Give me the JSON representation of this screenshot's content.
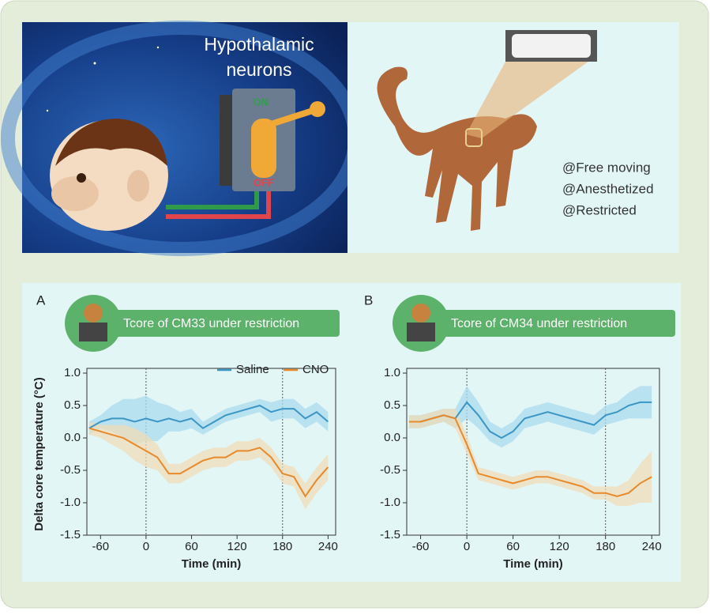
{
  "illustration": {
    "title_lines": [
      "Hypothalamic",
      "neurons"
    ],
    "switch_on": "ON",
    "switch_off": "OFF",
    "conditions": [
      "@Free moving",
      "@Anesthetized",
      "@Restricted"
    ]
  },
  "chart_data": [
    {
      "type": "line",
      "panel": "A",
      "title": "Tcore of CM33 under restriction",
      "xlabel": "Time (min)",
      "ylabel": "Delta core temperature (°C)",
      "x": [
        -75,
        -60,
        -45,
        -30,
        -15,
        0,
        15,
        30,
        45,
        60,
        75,
        90,
        105,
        120,
        135,
        150,
        165,
        180,
        195,
        210,
        225,
        240
      ],
      "series": [
        {
          "name": "Saline",
          "color": "#3b96c6",
          "band_color": "#a9dbee",
          "values": [
            0.15,
            0.25,
            0.3,
            0.3,
            0.25,
            0.3,
            0.25,
            0.3,
            0.25,
            0.3,
            0.15,
            0.25,
            0.35,
            0.4,
            0.45,
            0.5,
            0.4,
            0.45,
            0.45,
            0.3,
            0.4,
            0.25
          ],
          "errors": [
            0.1,
            0.1,
            0.2,
            0.3,
            0.35,
            0.35,
            0.3,
            0.2,
            0.15,
            0.15,
            0.1,
            0.1,
            0.1,
            0.1,
            0.1,
            0.1,
            0.15,
            0.15,
            0.15,
            0.15,
            0.15,
            0.15
          ]
        },
        {
          "name": "CNO",
          "color": "#e8892a",
          "band_color": "#f0dcb8",
          "values": [
            0.15,
            0.1,
            0.05,
            0.0,
            -0.1,
            -0.2,
            -0.3,
            -0.55,
            -0.55,
            -0.45,
            -0.35,
            -0.3,
            -0.3,
            -0.2,
            -0.2,
            -0.15,
            -0.3,
            -0.55,
            -0.6,
            -0.9,
            -0.65,
            -0.45
          ],
          "errors": [
            0.1,
            0.1,
            0.15,
            0.2,
            0.25,
            0.25,
            0.2,
            0.15,
            0.15,
            0.15,
            0.15,
            0.15,
            0.15,
            0.15,
            0.15,
            0.15,
            0.15,
            0.15,
            0.15,
            0.2,
            0.2,
            0.2
          ]
        }
      ],
      "vlines": [
        0,
        180
      ],
      "legend": "upper right",
      "xlim": [
        -78,
        250
      ],
      "xticks": [
        -60,
        0,
        60,
        120,
        180,
        240
      ],
      "ylim": [
        -1.5,
        1.0
      ],
      "yticks": [
        {
          "value": 1.0,
          "label": "1.0"
        },
        0.5,
        {
          "value": 0,
          "label": "0.0"
        },
        -0.5,
        {
          "value": -1.0,
          "label": "-1.0"
        },
        -1.5
      ]
    },
    {
      "type": "line",
      "panel": "B",
      "title": "Tcore of CM34 under restriction",
      "xlabel": "Time (min)",
      "x": [
        -75,
        -60,
        -45,
        -30,
        -15,
        0,
        15,
        30,
        45,
        60,
        75,
        90,
        105,
        120,
        135,
        150,
        165,
        180,
        195,
        210,
        225,
        240
      ],
      "series": [
        {
          "color": "#3b96c6",
          "band_color": "#a9dbee",
          "values": [
            0.25,
            0.25,
            0.3,
            0.35,
            0.3,
            0.55,
            0.35,
            0.1,
            0.0,
            0.1,
            0.3,
            0.35,
            0.4,
            0.35,
            0.3,
            0.25,
            0.2,
            0.35,
            0.4,
            0.5,
            0.55,
            0.55
          ],
          "errors": [
            0.1,
            0.1,
            0.1,
            0.1,
            0.15,
            0.25,
            0.2,
            0.15,
            0.15,
            0.15,
            0.15,
            0.15,
            0.15,
            0.15,
            0.15,
            0.15,
            0.15,
            0.15,
            0.15,
            0.2,
            0.25,
            0.25
          ]
        },
        {
          "color": "#e8892a",
          "band_color": "#f0dcb8",
          "values": [
            0.25,
            0.25,
            0.3,
            0.35,
            0.3,
            -0.1,
            -0.55,
            -0.6,
            -0.65,
            -0.7,
            -0.65,
            -0.6,
            -0.6,
            -0.65,
            -0.7,
            -0.75,
            -0.85,
            -0.85,
            -0.9,
            -0.85,
            -0.7,
            -0.6
          ],
          "errors": [
            0.1,
            0.1,
            0.1,
            0.1,
            0.15,
            0.15,
            0.1,
            0.1,
            0.1,
            0.1,
            0.1,
            0.1,
            0.1,
            0.1,
            0.1,
            0.1,
            0.1,
            0.1,
            0.15,
            0.2,
            0.3,
            0.4
          ]
        }
      ],
      "vlines": [
        0,
        180
      ],
      "xlim": [
        -78,
        250
      ],
      "xticks": [
        -60,
        0,
        60,
        120,
        180,
        240
      ],
      "ylim": [
        -1.5,
        1.0
      ],
      "yticks": [
        {
          "value": 1.0,
          "label": "1.0"
        },
        0.5,
        {
          "value": 0,
          "label": "0.0"
        },
        -0.5,
        {
          "value": -1.0,
          "label": "-1.0"
        },
        -1.5
      ]
    }
  ]
}
